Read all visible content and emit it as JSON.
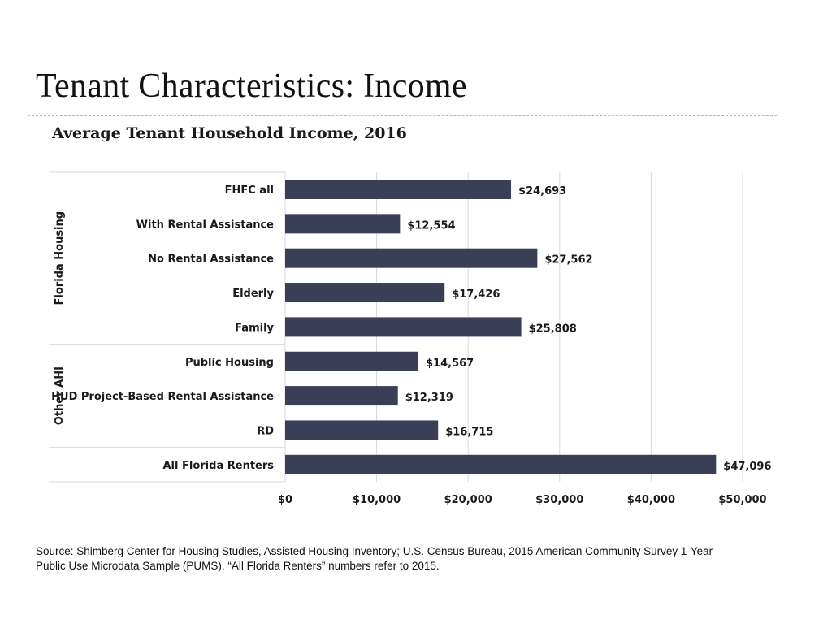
{
  "slide": {
    "title": "Tenant Characteristics: Income",
    "source": "Source: Shimberg Center for Housing Studies, Assisted Housing Inventory; U.S. Census Bureau, 2015 American Community Survey 1-Year Public Use Microdata Sample (PUMS). “All Florida Renters” numbers refer to 2015."
  },
  "chart_data": {
    "type": "bar",
    "orientation": "horizontal",
    "title": "Average Tenant Household Income, 2016",
    "categories": [
      "FHFC all",
      "With Rental Assistance",
      "No Rental Assistance",
      "Elderly",
      "Family",
      "Public Housing",
      "HUD Project-Based Rental Assistance",
      "RD",
      "All Florida Renters"
    ],
    "values": [
      24693,
      12554,
      27562,
      17426,
      25808,
      14567,
      12319,
      16715,
      47096
    ],
    "data_labels": [
      "$24,693",
      "$12,554",
      "$27,562",
      "$17,426",
      "$25,808",
      "$14,567",
      "$12,319",
      "$16,715",
      "$47,096"
    ],
    "groups": [
      {
        "name": "Florida Housing",
        "start": 0,
        "end": 4
      },
      {
        "name": "Other AHI",
        "start": 5,
        "end": 7
      }
    ],
    "xlim": [
      0,
      50000
    ],
    "xticks": [
      0,
      10000,
      20000,
      30000,
      40000,
      50000
    ],
    "xtick_labels": [
      "$0",
      "$10,000",
      "$20,000",
      "$30,000",
      "$40,000",
      "$50,000"
    ],
    "xlabel": "",
    "ylabel": "",
    "grid": true,
    "bar_color": "#3b3e57"
  }
}
